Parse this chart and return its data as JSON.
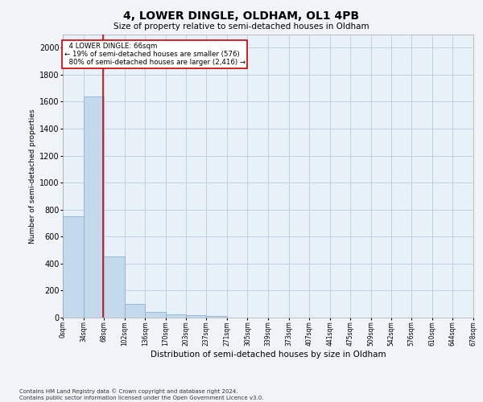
{
  "title": "4, LOWER DINGLE, OLDHAM, OL1 4PB",
  "subtitle": "Size of property relative to semi-detached houses in Oldham",
  "xlabel": "Distribution of semi-detached houses by size in Oldham",
  "ylabel": "Number of semi-detached properties",
  "footnote": "Contains HM Land Registry data © Crown copyright and database right 2024.\nContains public sector information licensed under the Open Government Licence v3.0.",
  "bar_edges": [
    0,
    34,
    68,
    102,
    136,
    170,
    203,
    237,
    271,
    305,
    339,
    373,
    407,
    441,
    475,
    509,
    542,
    576,
    610,
    644,
    678
  ],
  "bar_heights": [
    750,
    1640,
    450,
    100,
    40,
    25,
    15,
    10,
    0,
    0,
    0,
    0,
    0,
    0,
    0,
    0,
    0,
    0,
    0,
    0
  ],
  "bar_color": "#c5d9ed",
  "bar_edgecolor": "#8ab4d4",
  "property_size": 66,
  "property_label": "4 LOWER DINGLE: 66sqm",
  "smaller_pct": "19%",
  "smaller_n": "576",
  "larger_pct": "80%",
  "larger_n": "2,416",
  "annotation_line_color": "#cc0000",
  "annotation_box_color": "#cc0000",
  "ylim": [
    0,
    2100
  ],
  "yticks": [
    0,
    200,
    400,
    600,
    800,
    1000,
    1200,
    1400,
    1600,
    1800,
    2000
  ],
  "tick_labels": [
    "0sqm",
    "34sqm",
    "68sqm",
    "102sqm",
    "136sqm",
    "170sqm",
    "203sqm",
    "237sqm",
    "271sqm",
    "305sqm",
    "339sqm",
    "373sqm",
    "407sqm",
    "441sqm",
    "475sqm",
    "509sqm",
    "542sqm",
    "576sqm",
    "610sqm",
    "644sqm",
    "678sqm"
  ],
  "background_color": "#f0f4f8",
  "plot_bg_color": "#e8f0f8",
  "grid_color": "#c0cfe0"
}
